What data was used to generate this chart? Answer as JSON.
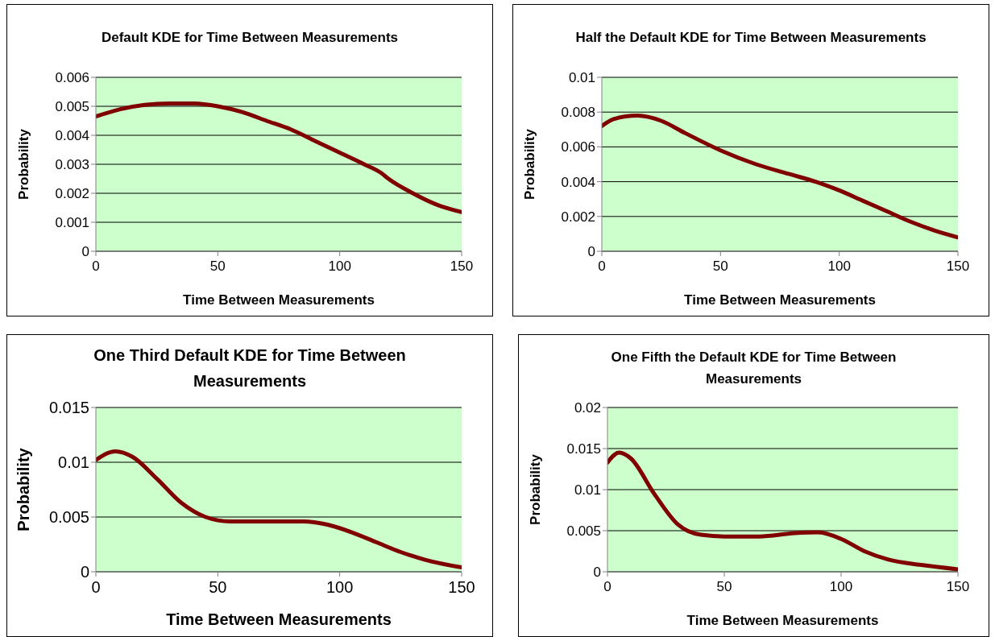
{
  "chart_data": [
    {
      "type": "line",
      "title": "Default KDE for Time Between Measurements",
      "xlabel": "Time Between Measurements",
      "ylabel": "Probability",
      "x": [
        0,
        10,
        20,
        30,
        40,
        50,
        60,
        70,
        80,
        90,
        100,
        110,
        117,
        120,
        130,
        140,
        150
      ],
      "series": [
        {
          "color": "#800000",
          "values": [
            0.00465,
            0.0049,
            0.00505,
            0.0051,
            0.0051,
            0.005,
            0.0048,
            0.0045,
            0.0042,
            0.0038,
            0.0034,
            0.003,
            0.0027,
            0.0025,
            0.002,
            0.0016,
            0.00135
          ]
        }
      ],
      "xlim": [
        0,
        150
      ],
      "xticks": [
        0,
        50,
        100,
        150
      ],
      "ylim": [
        0,
        0.006
      ],
      "yticks": [
        0,
        0.001,
        0.002,
        0.003,
        0.004,
        0.005,
        0.006
      ],
      "grid": "y",
      "legend": false,
      "marker": "none",
      "line_style": "solid"
    },
    {
      "type": "line",
      "title": "Half the Default KDE for Time Between Measurements",
      "xlabel": "Time Between Measurements",
      "ylabel": "Probability",
      "x": [
        0,
        5,
        15,
        25,
        35,
        50,
        65,
        80,
        90,
        100,
        110,
        120,
        130,
        140,
        150
      ],
      "series": [
        {
          "color": "#800000",
          "values": [
            0.0072,
            0.0076,
            0.0078,
            0.0075,
            0.0068,
            0.0058,
            0.005,
            0.0044,
            0.004,
            0.0035,
            0.0029,
            0.0023,
            0.0017,
            0.0012,
            0.0008
          ]
        }
      ],
      "xlim": [
        0,
        150
      ],
      "xticks": [
        0,
        50,
        100,
        150
      ],
      "ylim": [
        0,
        0.01
      ],
      "yticks": [
        0,
        0.002,
        0.004,
        0.006,
        0.008,
        0.01
      ],
      "grid": "y",
      "legend": false,
      "marker": "none",
      "line_style": "solid"
    },
    {
      "type": "line",
      "title": "One Third Default KDE for Time Between Measurements",
      "xlabel": "Time Between Measurements",
      "ylabel": "Probability",
      "x": [
        0,
        8,
        15,
        25,
        35,
        45,
        55,
        70,
        85,
        95,
        105,
        115,
        125,
        135,
        150
      ],
      "series": [
        {
          "color": "#800000",
          "values": [
            0.0102,
            0.011,
            0.0105,
            0.0085,
            0.0063,
            0.005,
            0.0046,
            0.0046,
            0.0046,
            0.0043,
            0.0036,
            0.0027,
            0.0018,
            0.0011,
            0.0004
          ]
        }
      ],
      "xlim": [
        0,
        150
      ],
      "xticks": [
        0,
        50,
        100,
        150
      ],
      "ylim": [
        0,
        0.015
      ],
      "yticks": [
        0,
        0.005,
        0.01,
        0.015
      ],
      "grid": "y",
      "legend": false,
      "marker": "none",
      "line_style": "solid"
    },
    {
      "type": "line",
      "title": "One Fifth the Default KDE for Time Between Measurements",
      "xlabel": "Time Between Measurements",
      "ylabel": "Probability",
      "x": [
        0,
        5,
        10,
        20,
        30,
        40,
        50,
        65,
        80,
        90,
        100,
        110,
        120,
        135,
        150
      ],
      "series": [
        {
          "color": "#800000",
          "values": [
            0.0133,
            0.0145,
            0.0138,
            0.0095,
            0.0058,
            0.0045,
            0.0043,
            0.0043,
            0.0047,
            0.0048,
            0.004,
            0.0025,
            0.0015,
            0.0008,
            0.0003
          ]
        }
      ],
      "xlim": [
        0,
        150
      ],
      "xticks": [
        0,
        50,
        100,
        150
      ],
      "ylim": [
        0,
        0.02
      ],
      "yticks": [
        0,
        0.005,
        0.01,
        0.015,
        0.02
      ],
      "grid": "y",
      "legend": false,
      "marker": "none",
      "line_style": "solid"
    }
  ]
}
